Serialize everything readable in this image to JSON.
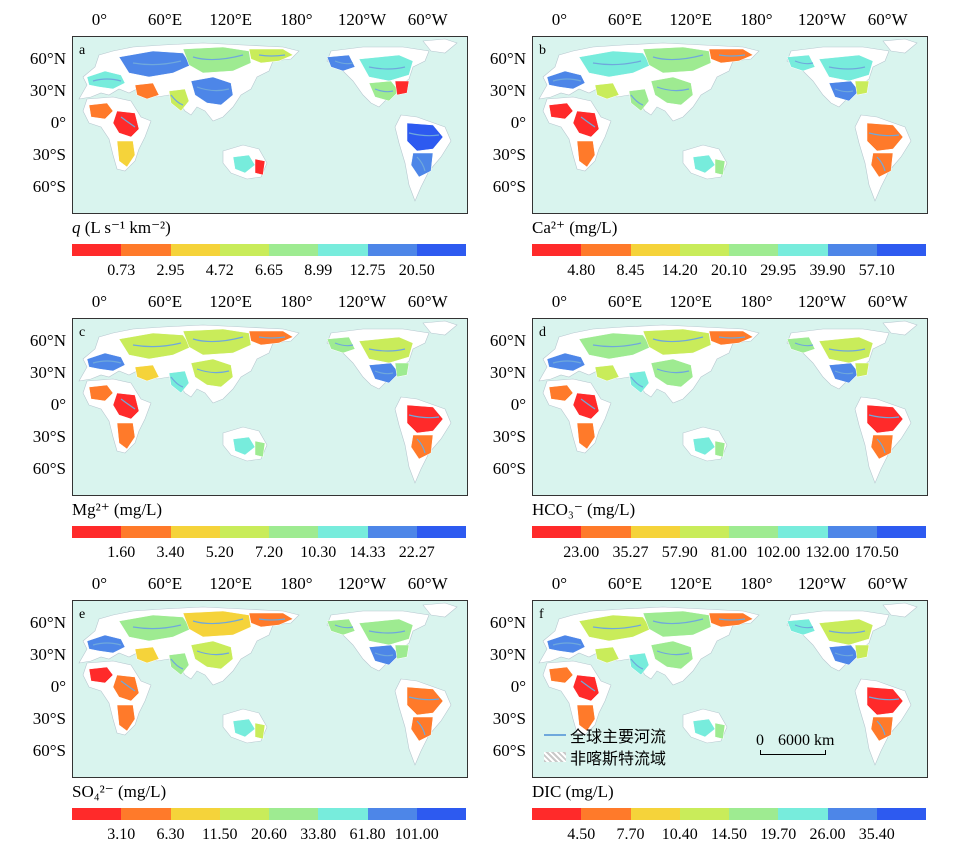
{
  "lon_labels": [
    "0°",
    "60°E",
    "120°E",
    "180°",
    "120°W",
    "60°W"
  ],
  "lat_labels": [
    "60°N",
    "30°N",
    "0°",
    "30°S",
    "60°S"
  ],
  "colors": {
    "ocean": "#d9f4ee",
    "land": "#ffffff",
    "river": "#6fa8dc",
    "ramp": [
      "#ff2a2a",
      "#ff7a2a",
      "#f5d33a",
      "#c9ec5a",
      "#9eeb91",
      "#77ecdc",
      "#4d86e8",
      "#2d5af0"
    ]
  },
  "panels": [
    {
      "id": "a",
      "label": "a",
      "title_main": "q",
      "title_rest": " (L s⁻¹ km⁻²)",
      "ticks": [
        "0.73",
        "2.95",
        "4.72",
        "6.65",
        "8.99",
        "12.75",
        "20.50"
      ]
    },
    {
      "id": "b",
      "label": "b",
      "title_main": "Ca²⁺ (mg/L)",
      "title_rest": "",
      "ticks": [
        "4.80",
        "8.45",
        "14.20",
        "20.10",
        "29.95",
        "39.90",
        "57.10"
      ]
    },
    {
      "id": "c",
      "label": "c",
      "title_main": "Mg²⁺ (mg/L)",
      "title_rest": "",
      "ticks": [
        "1.60",
        "3.40",
        "5.20",
        "7.20",
        "10.30",
        "14.33",
        "22.27"
      ]
    },
    {
      "id": "d",
      "label": "d",
      "title_main": "HCO₃⁻ (mg/L)",
      "title_rest": "",
      "ticks": [
        "23.00",
        "35.27",
        "57.90",
        "81.00",
        "102.00",
        "132.00",
        "170.50"
      ]
    },
    {
      "id": "e",
      "label": "e",
      "title_main": "SO₄²⁻ (mg/L)",
      "title_rest": "",
      "ticks": [
        "3.10",
        "6.30",
        "11.50",
        "20.60",
        "33.80",
        "61.80",
        "101.00"
      ]
    },
    {
      "id": "f",
      "label": "f",
      "title_main": "DIC (mg/L)",
      "title_rest": "",
      "ticks": [
        "4.50",
        "7.70",
        "10.40",
        "14.50",
        "19.70",
        "26.00",
        "35.40"
      ]
    }
  ],
  "legend": {
    "rivers": "全球主要河流",
    "nonkarst": "非喀斯特流域"
  },
  "scale": {
    "zero": "0",
    "dist": "6000 km"
  },
  "region_colors": {
    "a": {
      "europe": 5,
      "russia": 6,
      "siberia": 4,
      "eastsib": 3,
      "china": 6,
      "india": 3,
      "mideast": 1,
      "wafrica": 1,
      "cafrica": 0,
      "safrica": 2,
      "australia": 5,
      "ecaustralia": 0,
      "alaska": 6,
      "canada": 5,
      "usa": 4,
      "useast": 0,
      "amazon": 7,
      "parana": 6
    },
    "b": {
      "europe": 6,
      "russia": 5,
      "siberia": 4,
      "eastsib": 1,
      "china": 4,
      "india": 4,
      "mideast": 3,
      "wafrica": 0,
      "cafrica": 0,
      "safrica": 1,
      "australia": 5,
      "ecaustralia": 4,
      "alaska": 5,
      "canada": 5,
      "usa": 6,
      "useast": 3,
      "amazon": 1,
      "parana": 1
    },
    "c": {
      "europe": 6,
      "russia": 3,
      "siberia": 3,
      "eastsib": 1,
      "china": 3,
      "india": 5,
      "mideast": 2,
      "wafrica": 1,
      "cafrica": 0,
      "safrica": 1,
      "australia": 5,
      "ecaustralia": 4,
      "alaska": 4,
      "canada": 3,
      "usa": 6,
      "useast": 4,
      "amazon": 0,
      "parana": 1
    },
    "d": {
      "europe": 6,
      "russia": 4,
      "siberia": 3,
      "eastsib": 1,
      "china": 4,
      "india": 5,
      "mideast": 3,
      "wafrica": 1,
      "cafrica": 0,
      "safrica": 1,
      "australia": 5,
      "ecaustralia": 4,
      "alaska": 4,
      "canada": 3,
      "usa": 6,
      "useast": 3,
      "amazon": 0,
      "parana": 1
    },
    "e": {
      "europe": 6,
      "russia": 4,
      "siberia": 2,
      "eastsib": 1,
      "china": 3,
      "india": 4,
      "mideast": 2,
      "wafrica": 0,
      "cafrica": 1,
      "safrica": 1,
      "australia": 5,
      "ecaustralia": 3,
      "alaska": 4,
      "canada": 4,
      "usa": 6,
      "useast": 4,
      "amazon": 1,
      "parana": 1
    },
    "f": {
      "europe": 6,
      "russia": 3,
      "siberia": 4,
      "eastsib": 1,
      "china": 4,
      "india": 5,
      "mideast": 3,
      "wafrica": 1,
      "cafrica": 0,
      "safrica": 1,
      "australia": 5,
      "ecaustralia": 4,
      "alaska": 5,
      "canada": 3,
      "usa": 6,
      "useast": 3,
      "amazon": 0,
      "parana": 1
    }
  }
}
